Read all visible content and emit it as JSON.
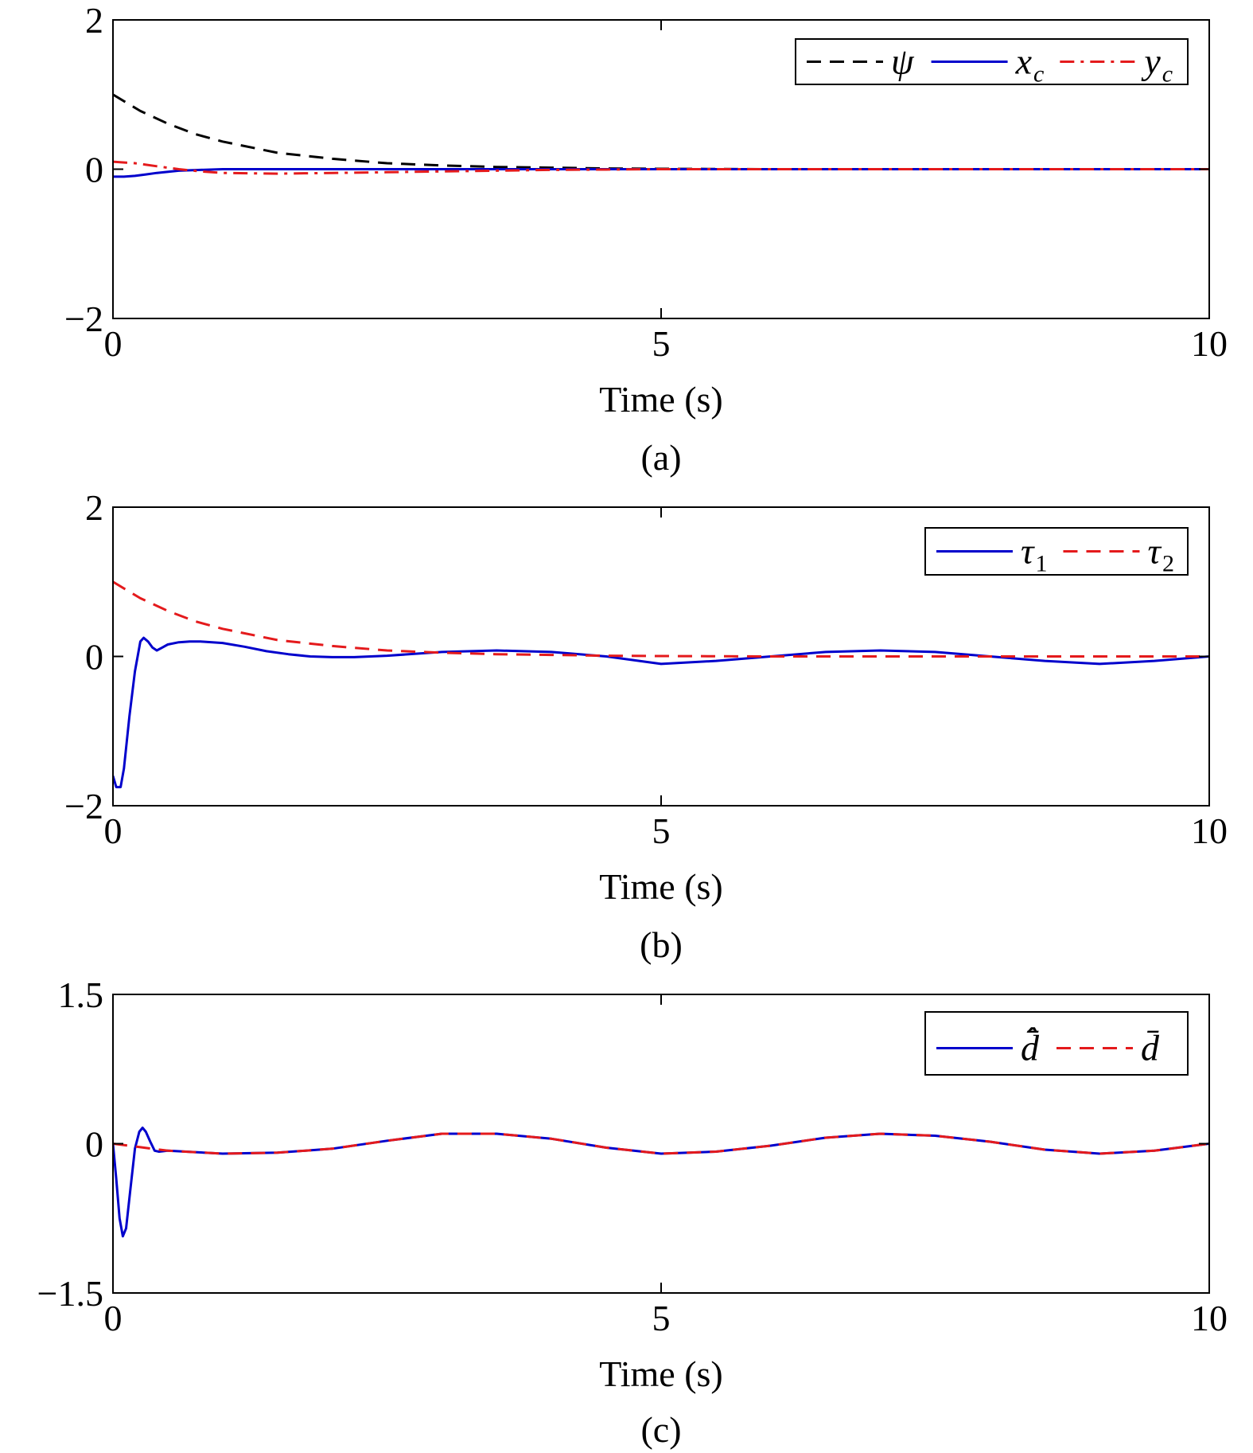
{
  "chart_data": [
    {
      "type": "line",
      "caption": "(a)",
      "xlabel": "Time (s)",
      "ylabel": "",
      "xlim": [
        0,
        10
      ],
      "ylim": [
        -2,
        2
      ],
      "xticks": [
        0,
        5,
        10
      ],
      "xtick_labels": [
        "0",
        "5",
        "10"
      ],
      "yticks": [
        -2,
        0,
        2
      ],
      "ytick_labels": [
        "−2",
        "0",
        "2"
      ],
      "grid": false,
      "legend_position": "top-right",
      "series": [
        {
          "name": "ψ",
          "color": "#000000",
          "style": "dashed",
          "x": [
            0,
            0.25,
            0.5,
            0.75,
            1,
            1.5,
            2,
            2.5,
            3,
            3.5,
            4,
            4.5,
            5,
            6,
            7,
            8,
            9,
            10
          ],
          "y": [
            1.0,
            0.78,
            0.61,
            0.47,
            0.37,
            0.22,
            0.14,
            0.08,
            0.05,
            0.03,
            0.02,
            0.01,
            0.005,
            0,
            0,
            0,
            0,
            0
          ]
        },
        {
          "name": "x_c",
          "color": "#0000cc",
          "style": "solid",
          "x": [
            0,
            0.1,
            0.2,
            0.3,
            0.4,
            0.6,
            0.8,
            1,
            1.5,
            2,
            3,
            4,
            5,
            6,
            7,
            8,
            9,
            10
          ],
          "y": [
            -0.1,
            -0.1,
            -0.09,
            -0.07,
            -0.05,
            -0.02,
            -0.01,
            0,
            0,
            0,
            0,
            0,
            0,
            0,
            0,
            0,
            0,
            0
          ]
        },
        {
          "name": "y_c",
          "color": "#e41a1c",
          "style": "dashdot",
          "x": [
            0,
            0.2,
            0.4,
            0.6,
            0.8,
            1,
            1.5,
            2,
            2.5,
            3,
            4,
            5,
            6,
            7,
            8,
            9,
            10
          ],
          "y": [
            0.1,
            0.08,
            0.04,
            0.0,
            -0.03,
            -0.05,
            -0.06,
            -0.05,
            -0.04,
            -0.03,
            -0.01,
            0,
            0,
            0,
            0,
            0,
            0
          ]
        }
      ]
    },
    {
      "type": "line",
      "caption": "(b)",
      "xlabel": "Time (s)",
      "ylabel": "",
      "xlim": [
        0,
        10
      ],
      "ylim": [
        -2,
        2
      ],
      "xticks": [
        0,
        5,
        10
      ],
      "xtick_labels": [
        "0",
        "5",
        "10"
      ],
      "yticks": [
        -2,
        0,
        2
      ],
      "ytick_labels": [
        "−2",
        "0",
        "2"
      ],
      "grid": false,
      "legend_position": "top-right",
      "series": [
        {
          "name": "τ_1",
          "color": "#0000cc",
          "style": "solid",
          "x": [
            0,
            0.03,
            0.07,
            0.1,
            0.15,
            0.2,
            0.25,
            0.28,
            0.32,
            0.36,
            0.4,
            0.45,
            0.5,
            0.6,
            0.7,
            0.8,
            1.0,
            1.2,
            1.4,
            1.6,
            1.8,
            2.0,
            2.2,
            2.5,
            3.0,
            3.5,
            4.0,
            4.5,
            5.0,
            5.5,
            6.0,
            6.5,
            7.0,
            7.5,
            8.0,
            8.5,
            9.0,
            9.5,
            10.0
          ],
          "y": [
            -1.6,
            -1.75,
            -1.75,
            -1.5,
            -0.8,
            -0.2,
            0.2,
            0.25,
            0.2,
            0.12,
            0.08,
            0.12,
            0.16,
            0.19,
            0.2,
            0.2,
            0.18,
            0.13,
            0.07,
            0.03,
            0.0,
            -0.01,
            -0.01,
            0.01,
            0.06,
            0.08,
            0.06,
            0.0,
            -0.1,
            -0.06,
            0.0,
            0.06,
            0.08,
            0.06,
            0.0,
            -0.06,
            -0.1,
            -0.06,
            0.0
          ]
        },
        {
          "name": "τ_2",
          "color": "#e41a1c",
          "style": "dashed",
          "x": [
            0,
            0.25,
            0.5,
            0.75,
            1,
            1.5,
            2,
            2.5,
            3,
            3.5,
            4,
            4.5,
            5,
            6,
            7,
            8,
            9,
            10
          ],
          "y": [
            1.0,
            0.78,
            0.61,
            0.47,
            0.37,
            0.22,
            0.14,
            0.08,
            0.05,
            0.03,
            0.02,
            0.01,
            0.005,
            0,
            0,
            0,
            0,
            0
          ]
        }
      ]
    },
    {
      "type": "line",
      "caption": "(c)",
      "xlabel": "Time (s)",
      "ylabel": "",
      "xlim": [
        0,
        10
      ],
      "ylim": [
        -1.5,
        1.5
      ],
      "xticks": [
        0,
        5,
        10
      ],
      "xtick_labels": [
        "0",
        "5",
        "10"
      ],
      "yticks": [
        -1.5,
        0,
        1.5
      ],
      "ytick_labels": [
        "−1.5",
        "0",
        "1.5"
      ],
      "grid": false,
      "legend_position": "top-right",
      "series": [
        {
          "name": "d̄̂",
          "color": "#0000cc",
          "style": "solid",
          "x": [
            0,
            0.03,
            0.06,
            0.09,
            0.12,
            0.16,
            0.2,
            0.24,
            0.27,
            0.3,
            0.34,
            0.38,
            0.42,
            0.5,
            1.0,
            1.5,
            2.0,
            2.5,
            3.0,
            3.5,
            4.0,
            4.5,
            5.0,
            5.5,
            6.0,
            6.5,
            7.0,
            7.5,
            8.0,
            8.5,
            9.0,
            9.5,
            10.0
          ],
          "y": [
            0.0,
            -0.35,
            -0.75,
            -0.93,
            -0.85,
            -0.45,
            -0.05,
            0.12,
            0.16,
            0.12,
            0.02,
            -0.07,
            -0.08,
            -0.07,
            -0.1,
            -0.09,
            -0.05,
            0.03,
            0.1,
            0.1,
            0.05,
            -0.04,
            -0.1,
            -0.08,
            -0.02,
            0.06,
            0.1,
            0.08,
            0.02,
            -0.06,
            -0.1,
            -0.07,
            0.0
          ]
        },
        {
          "name": "d̄",
          "color": "#e41a1c",
          "style": "dashed",
          "x": [
            0,
            0.5,
            1.0,
            1.5,
            2.0,
            2.5,
            3.0,
            3.5,
            4.0,
            4.5,
            5.0,
            5.5,
            6.0,
            6.5,
            7.0,
            7.5,
            8.0,
            8.5,
            9.0,
            9.5,
            10.0
          ],
          "y": [
            0.0,
            -0.07,
            -0.1,
            -0.09,
            -0.05,
            0.03,
            0.1,
            0.1,
            0.05,
            -0.04,
            -0.1,
            -0.08,
            -0.02,
            0.06,
            0.1,
            0.08,
            0.02,
            -0.06,
            -0.1,
            -0.07,
            0.0
          ]
        }
      ]
    }
  ]
}
